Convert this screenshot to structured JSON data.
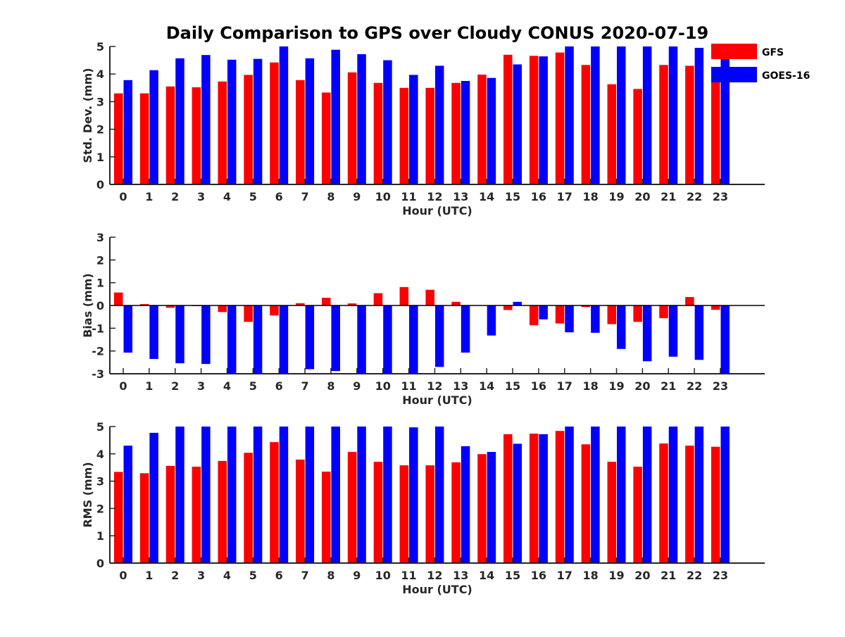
{
  "title": "Daily Comparison to GPS over Cloudy CONUS 2020-07-19",
  "colors": {
    "GFS": "#ff0000",
    "GOES-16": "#0000ff",
    "axis": "#262626"
  },
  "legend": {
    "position": "top-right",
    "entries": [
      "GFS",
      "GOES-16"
    ]
  },
  "chart_data": [
    {
      "type": "bar",
      "xlabel": "Hour (UTC)",
      "ylabel": "Std. Dev. (mm)",
      "ylim": [
        0,
        5
      ],
      "yticks": [
        0,
        1,
        2,
        3,
        4,
        5
      ],
      "categories": [
        "0",
        "1",
        "2",
        "3",
        "4",
        "5",
        "6",
        "7",
        "8",
        "9",
        "10",
        "11",
        "12",
        "13",
        "14",
        "15",
        "16",
        "17",
        "18",
        "19",
        "20",
        "21",
        "22",
        "23"
      ],
      "series": [
        {
          "name": "GFS",
          "values": [
            3.3,
            3.3,
            3.55,
            3.52,
            3.73,
            3.97,
            4.42,
            3.78,
            3.33,
            4.06,
            3.68,
            3.5,
            3.5,
            3.68,
            3.98,
            4.7,
            4.66,
            4.78,
            4.33,
            3.63,
            3.46,
            4.33,
            4.3,
            3.8
          ]
        },
        {
          "name": "GOES-16",
          "values": [
            3.78,
            4.14,
            4.57,
            4.69,
            4.52,
            4.55,
            5.0,
            4.57,
            4.88,
            4.72,
            4.5,
            3.97,
            4.3,
            3.75,
            3.86,
            4.35,
            4.64,
            5.0,
            5.0,
            5.0,
            5.0,
            5.0,
            4.95,
            4.6
          ]
        }
      ]
    },
    {
      "type": "bar",
      "xlabel": "Hour (UTC)",
      "ylabel": "Bias (mm)",
      "ylim": [
        -3,
        3
      ],
      "yticks": [
        -3,
        -2,
        -1,
        0,
        1,
        2,
        3
      ],
      "zero_line": true,
      "categories": [
        "0",
        "1",
        "2",
        "3",
        "4",
        "5",
        "6",
        "7",
        "8",
        "9",
        "10",
        "11",
        "12",
        "13",
        "14",
        "15",
        "16",
        "17",
        "18",
        "19",
        "20",
        "21",
        "22",
        "23"
      ],
      "series": [
        {
          "name": "GFS",
          "values": [
            0.57,
            0.06,
            -0.1,
            -0.03,
            -0.29,
            -0.72,
            -0.44,
            0.1,
            0.34,
            0.09,
            0.54,
            0.81,
            0.69,
            0.16,
            0.0,
            -0.2,
            -0.87,
            -0.79,
            -0.07,
            -0.82,
            -0.72,
            -0.56,
            0.37,
            -0.19
          ]
        },
        {
          "name": "GOES-16",
          "values": [
            -2.07,
            -2.35,
            -2.54,
            -2.57,
            -3.0,
            -3.0,
            -3.0,
            -2.8,
            -2.88,
            -3.0,
            -3.0,
            -3.0,
            -2.7,
            -2.07,
            -1.32,
            0.16,
            -0.61,
            -1.18,
            -1.2,
            -1.91,
            -2.45,
            -2.25,
            -2.39,
            -3.0
          ]
        }
      ]
    },
    {
      "type": "bar",
      "xlabel": "Hour (UTC)",
      "ylabel": "RMS (mm)",
      "ylim": [
        0,
        5
      ],
      "yticks": [
        0,
        1,
        2,
        3,
        4,
        5
      ],
      "categories": [
        "0",
        "1",
        "2",
        "3",
        "4",
        "5",
        "6",
        "7",
        "8",
        "9",
        "10",
        "11",
        "12",
        "13",
        "14",
        "15",
        "16",
        "17",
        "18",
        "19",
        "20",
        "21",
        "22",
        "23"
      ],
      "series": [
        {
          "name": "GFS",
          "values": [
            3.34,
            3.29,
            3.56,
            3.53,
            3.74,
            4.04,
            4.43,
            3.79,
            3.35,
            4.07,
            3.71,
            3.58,
            3.58,
            3.69,
            3.99,
            4.72,
            4.74,
            4.84,
            4.35,
            3.71,
            3.53,
            4.38,
            4.3,
            4.26
          ]
        },
        {
          "name": "GOES-16",
          "values": [
            4.3,
            4.77,
            5.0,
            5.0,
            5.0,
            5.0,
            5.0,
            5.0,
            5.0,
            5.0,
            5.0,
            4.97,
            5.0,
            4.28,
            4.07,
            4.37,
            4.72,
            5.0,
            5.0,
            5.0,
            5.0,
            5.0,
            5.0,
            5.0
          ]
        }
      ]
    }
  ]
}
